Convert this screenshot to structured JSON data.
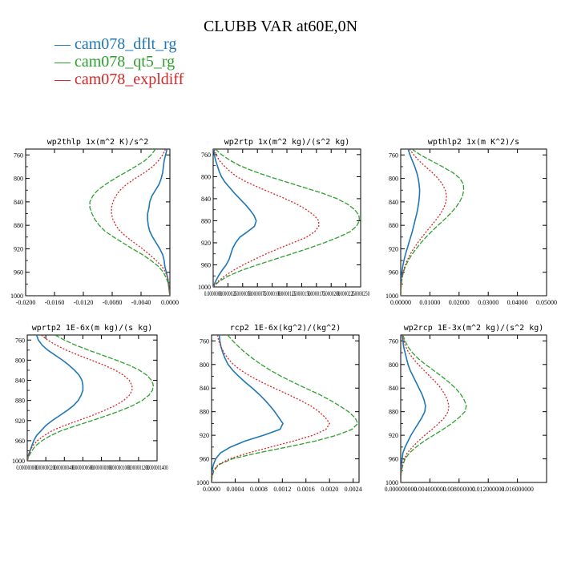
{
  "figure": {
    "title": "CLUBB VAR at60E,0N",
    "legend": [
      {
        "label": "cam078_dflt_rg",
        "color": "#1f77b4"
      },
      {
        "label": "cam078_qt5_rg",
        "color": "#2ca02c"
      },
      {
        "label": "cam078_expldiff",
        "color": "#d62728"
      }
    ]
  },
  "chart_data": [
    {
      "type": "line",
      "title": "wp2thlp  1x(m^2 K)/s^2",
      "xlim": [
        -0.02,
        0.0
      ],
      "ylim": [
        1000,
        750
      ],
      "xticks": [
        -0.02,
        -0.016,
        -0.012,
        -0.008,
        -0.004,
        0.0
      ],
      "xtick_labels": [
        "-0.0200",
        "-0.0160",
        "-0.0120",
        "-0.0080",
        "-0.0040",
        "0.0000"
      ],
      "yticks": [
        760,
        800,
        840,
        880,
        920,
        960,
        1000
      ],
      "y": [
        750,
        760,
        770,
        780,
        790,
        800,
        810,
        820,
        830,
        840,
        850,
        860,
        870,
        880,
        890,
        900,
        910,
        920,
        930,
        940,
        950,
        960,
        970,
        980,
        990,
        1000
      ],
      "series": [
        {
          "name": "cam078_dflt_rg",
          "values": [
            -0.0004,
            -0.0006,
            -0.0008,
            -0.0009,
            -0.001,
            -0.0012,
            -0.0015,
            -0.002,
            -0.0025,
            -0.0028,
            -0.0029,
            -0.0031,
            -0.0031,
            -0.003,
            -0.0028,
            -0.0024,
            -0.0019,
            -0.0014,
            -0.001,
            -0.0008,
            -0.0007,
            -0.0005,
            -0.0003,
            -0.0002,
            -0.0001,
            0.0
          ]
        },
        {
          "name": "cam078_qt5_rg",
          "values": [
            -0.002,
            -0.0026,
            -0.0035,
            -0.0048,
            -0.0062,
            -0.0076,
            -0.0089,
            -0.01,
            -0.0107,
            -0.0111,
            -0.0111,
            -0.0108,
            -0.0104,
            -0.0098,
            -0.009,
            -0.0078,
            -0.0065,
            -0.0052,
            -0.0038,
            -0.0026,
            -0.0016,
            -0.0009,
            -0.0005,
            -0.0002,
            -0.0001,
            0.0
          ]
        },
        {
          "name": "cam078_expldiff",
          "values": [
            -0.0006,
            -0.001,
            -0.0016,
            -0.0024,
            -0.0035,
            -0.0048,
            -0.006,
            -0.0069,
            -0.0075,
            -0.0079,
            -0.0081,
            -0.0081,
            -0.0079,
            -0.0075,
            -0.0069,
            -0.006,
            -0.0049,
            -0.0038,
            -0.0028,
            -0.0019,
            -0.0011,
            -0.0006,
            -0.0003,
            -0.0001,
            -5e-05,
            0.0
          ]
        }
      ]
    },
    {
      "type": "line",
      "title": "wp2rtp  1x(m^2 kg)/(s^2 kg)",
      "xlim": [
        0.0,
        2.5e-05
      ],
      "ylim": [
        1000,
        750
      ],
      "xticks": [
        0.0,
        2.5e-06,
        5e-06,
        7.5e-06,
        1e-05,
        1.25e-05,
        1.5e-05,
        1.75e-05,
        2e-05,
        2.25e-05,
        2.5e-05
      ],
      "xtick_labels": [
        "0.0000000",
        "0.0000025",
        "0.0000050",
        "0.0000075",
        "0.0000100",
        "0.0000125",
        "0.0000150",
        "0.0000175",
        "0.0000200",
        "0.0000225",
        "0.0000250"
      ],
      "yticks": [
        760,
        800,
        840,
        880,
        920,
        960,
        1000
      ],
      "y": [
        750,
        760,
        770,
        780,
        790,
        800,
        810,
        820,
        830,
        840,
        850,
        860,
        870,
        880,
        890,
        900,
        910,
        920,
        930,
        940,
        950,
        960,
        970,
        980,
        990,
        1000
      ],
      "series": [
        {
          "name": "cam078_dflt_rg",
          "values": [
            1e-07,
            2e-07,
            4e-07,
            7e-07,
            1e-06,
            1.4e-06,
            2e-06,
            2.8e-06,
            3.6e-06,
            4.5e-06,
            5.4e-06,
            6.2e-06,
            6.9e-06,
            7.3e-06,
            7e-06,
            5.8e-06,
            4.5e-06,
            3.8e-06,
            3.3e-06,
            3e-06,
            2.7e-06,
            2.2e-06,
            1.5e-06,
            9e-07,
            4e-07,
            0.0
          ]
        },
        {
          "name": "cam078_qt5_rg",
          "values": [
            4e-07,
            1.4e-06,
            2.8e-06,
            4.5e-06,
            6.8e-06,
            9.5e-06,
            1.25e-05,
            1.55e-05,
            1.85e-05,
            2.1e-05,
            2.28e-05,
            2.4e-05,
            2.47e-05,
            2.48e-05,
            2.43e-05,
            2.32e-05,
            2.12e-05,
            1.88e-05,
            1.62e-05,
            1.33e-05,
            1.04e-05,
            7.5e-06,
            4.8e-06,
            2.6e-06,
            1e-06,
            0.0
          ]
        },
        {
          "name": "cam078_expldiff",
          "values": [
            2e-07,
            5e-07,
            1e-06,
            1.8e-06,
            2.8e-06,
            4e-06,
            5.7e-06,
            7.8e-06,
            1e-05,
            1.22e-05,
            1.42e-05,
            1.58e-05,
            1.71e-05,
            1.79e-05,
            1.79e-05,
            1.72e-05,
            1.58e-05,
            1.35e-05,
            1.12e-05,
            9e-06,
            7e-06,
            5.1e-06,
            3.4e-06,
            2e-06,
            8e-07,
            0.0
          ]
        }
      ]
    },
    {
      "type": "line",
      "title": "wpthlp2  1x(m K^2)/s",
      "xlim": [
        0.0,
        0.05
      ],
      "ylim": [
        1000,
        750
      ],
      "xticks": [
        0.0,
        0.01,
        0.02,
        0.03,
        0.04,
        0.05
      ],
      "xtick_labels": [
        "0.00000",
        "0.01000",
        "0.02000",
        "0.03000",
        "0.04000",
        "0.05000"
      ],
      "yticks": [
        760,
        800,
        840,
        880,
        920,
        960,
        1000
      ],
      "y": [
        750,
        760,
        770,
        780,
        790,
        800,
        810,
        820,
        830,
        840,
        850,
        860,
        870,
        880,
        890,
        900,
        910,
        920,
        930,
        940,
        950,
        960,
        970,
        980,
        990,
        1000
      ],
      "series": [
        {
          "name": "cam078_dflt_rg",
          "values": [
            0.0025,
            0.0032,
            0.004,
            0.0048,
            0.0055,
            0.006,
            0.0063,
            0.0065,
            0.0064,
            0.0062,
            0.0059,
            0.0055,
            0.005,
            0.0045,
            0.004,
            0.0034,
            0.0028,
            0.0022,
            0.0016,
            0.0011,
            0.0007,
            0.0004,
            0.0002,
            0.0001,
            3e-05,
            0.0
          ]
        },
        {
          "name": "cam078_qt5_rg",
          "values": [
            0.0038,
            0.0068,
            0.0105,
            0.0143,
            0.0178,
            0.0203,
            0.0215,
            0.0216,
            0.0212,
            0.0202,
            0.0188,
            0.017,
            0.015,
            0.0128,
            0.0107,
            0.0087,
            0.0069,
            0.0053,
            0.0038,
            0.0026,
            0.0016,
            0.0009,
            0.0005,
            0.0002,
            0.0001,
            0.0
          ]
        },
        {
          "name": "cam078_expldiff",
          "values": [
            0.003,
            0.0045,
            0.0063,
            0.0085,
            0.0108,
            0.0128,
            0.0143,
            0.0153,
            0.0157,
            0.0155,
            0.0148,
            0.0137,
            0.0122,
            0.0106,
            0.0089,
            0.0073,
            0.0058,
            0.0044,
            0.0032,
            0.0022,
            0.0014,
            0.0008,
            0.0004,
            0.0002,
            5e-05,
            0.0
          ]
        }
      ]
    },
    {
      "type": "line",
      "title": "wprtp2  1E-6x(m kg)/(s kg)",
      "xlim": [
        0.0,
        1.4e-06
      ],
      "ylim": [
        1000,
        750
      ],
      "xticks": [
        0.0,
        2e-07,
        4e-07,
        6e-07,
        8e-07,
        1e-06,
        1.2e-06,
        1.4e-06
      ],
      "xtick_labels": [
        "0.000000000",
        "0.000000200",
        "0.000000400",
        "0.000000600",
        "0.000000800",
        "0.000001000",
        "0.000001200",
        "0.000001400"
      ],
      "yticks": [
        760,
        800,
        840,
        880,
        920,
        960,
        1000
      ],
      "y": [
        750,
        760,
        770,
        780,
        790,
        800,
        810,
        820,
        830,
        840,
        850,
        860,
        870,
        880,
        890,
        900,
        910,
        920,
        930,
        940,
        950,
        960,
        970,
        980,
        990,
        1000
      ],
      "series": [
        {
          "name": "cam078_dflt_rg",
          "values": [
            1e-07,
            1.2e-07,
            1.6e-07,
            2.2e-07,
            3e-07,
            3.8e-07,
            4.5e-07,
            5.1e-07,
            5.6e-07,
            5.9e-07,
            6e-07,
            6e-07,
            5.8e-07,
            5.5e-07,
            5e-07,
            4.3e-07,
            3.5e-07,
            2.7e-07,
            2e-07,
            1.5e-07,
            1e-07,
            7e-08,
            5e-08,
            3e-08,
            1e-08,
            0.0
          ]
        },
        {
          "name": "cam078_qt5_rg",
          "values": [
            3e-07,
            4e-07,
            5.2e-07,
            6.6e-07,
            8.1e-07,
            9.6e-07,
            1.1e-06,
            1.21e-06,
            1.29e-06,
            1.34e-06,
            1.36e-06,
            1.35e-06,
            1.31e-06,
            1.24e-06,
            1.14e-06,
            1.01e-06,
            8.6e-07,
            7e-07,
            5.3e-07,
            3.7e-07,
            2.5e-07,
            1.6e-07,
            9e-08,
            5e-08,
            2e-08,
            0.0
          ]
        },
        {
          "name": "cam078_expldiff",
          "values": [
            1.5e-07,
            2.2e-07,
            3.1e-07,
            4.2e-07,
            5.5e-07,
            6.9e-07,
            8.3e-07,
            9.5e-07,
            1.04e-06,
            1.1e-06,
            1.13e-06,
            1.13e-06,
            1.1e-06,
            1.04e-06,
            9.5e-07,
            8.3e-07,
            7e-07,
            5.5e-07,
            4e-07,
            2.7e-07,
            1.8e-07,
            1.1e-07,
            6e-08,
            3e-08,
            1e-08,
            0.0
          ]
        }
      ]
    },
    {
      "type": "line",
      "title": "rcp2  1E-6x(kg^2)/(kg^2)",
      "xlim": [
        0.0,
        0.0025
      ],
      "ylim": [
        1000,
        750
      ],
      "xticks": [
        0.0,
        0.0004,
        0.0008,
        0.0012,
        0.0016,
        0.002,
        0.0024
      ],
      "xtick_labels": [
        "0.0000",
        "0.0004",
        "0.0008",
        "0.0012",
        "0.0016",
        "0.0020",
        "0.0024"
      ],
      "yticks": [
        760,
        800,
        840,
        880,
        920,
        960,
        1000
      ],
      "y": [
        750,
        760,
        770,
        780,
        790,
        800,
        810,
        820,
        830,
        840,
        850,
        860,
        870,
        880,
        890,
        900,
        910,
        920,
        930,
        940,
        950,
        960,
        970,
        980,
        990,
        1000
      ],
      "series": [
        {
          "name": "cam078_dflt_rg",
          "values": [
            0.00013,
            0.00014,
            0.00016,
            0.00019,
            0.00023,
            0.00028,
            0.00036,
            0.00046,
            0.00057,
            0.00069,
            0.0008,
            0.0009,
            0.00099,
            0.00107,
            0.00114,
            0.00121,
            0.00116,
            0.00088,
            0.00056,
            0.00032,
            0.00015,
            7e-05,
            3e-05,
            1e-05,
            0.0,
            0.0
          ]
        },
        {
          "name": "cam078_qt5_rg",
          "values": [
            0.00027,
            0.00036,
            0.00046,
            0.00057,
            0.0007,
            0.00084,
            0.001,
            0.00118,
            0.00138,
            0.00159,
            0.00181,
            0.002,
            0.00217,
            0.00232,
            0.00243,
            0.00248,
            0.00238,
            0.00212,
            0.00175,
            0.00128,
            0.00078,
            0.00035,
            0.00012,
            4e-05,
            1e-05,
            0.0
          ]
        },
        {
          "name": "cam078_expldiff",
          "values": [
            0.0001,
            0.00012,
            0.00016,
            0.00021,
            0.00028,
            0.00037,
            0.0005,
            0.00066,
            0.00085,
            0.00106,
            0.00128,
            0.00149,
            0.00168,
            0.00182,
            0.00193,
            0.002,
            0.00194,
            0.00172,
            0.00138,
            0.001,
            0.00062,
            0.0003,
            0.00011,
            3e-05,
            1e-05,
            0.0
          ]
        }
      ]
    },
    {
      "type": "line",
      "title": "wp2rcp  1E-3x(m^2 kg)/(s^2 kg)",
      "xlim": [
        0.0,
        0.02
      ],
      "ylim": [
        1000,
        750
      ],
      "xticks": [
        0.0,
        0.004,
        0.008,
        0.012,
        0.016
      ],
      "xtick_labels": [
        "0.000000000",
        "0.004000000",
        "0.008000000",
        "0.012000000",
        "0.016000000"
      ],
      "yticks": [
        760,
        800,
        840,
        880,
        920,
        960,
        1000
      ],
      "y": [
        750,
        760,
        770,
        780,
        790,
        800,
        810,
        820,
        830,
        840,
        850,
        860,
        870,
        880,
        890,
        900,
        910,
        920,
        930,
        940,
        950,
        960,
        970,
        980,
        990,
        1000
      ],
      "series": [
        {
          "name": "cam078_dflt_rg",
          "values": [
            0.0002,
            0.0003,
            0.0004,
            0.0006,
            0.0008,
            0.001,
            0.0013,
            0.0017,
            0.0021,
            0.0025,
            0.0029,
            0.0032,
            0.0034,
            0.0033,
            0.0029,
            0.0024,
            0.0019,
            0.0014,
            0.001,
            0.0006,
            0.0003,
            0.0002,
            0.0001,
            5e-05,
            2e-05,
            0.0
          ]
        },
        {
          "name": "cam078_qt5_rg",
          "values": [
            0.0003,
            0.0006,
            0.001,
            0.0016,
            0.0024,
            0.0034,
            0.0045,
            0.0056,
            0.0066,
            0.0075,
            0.0082,
            0.0087,
            0.009,
            0.0088,
            0.008,
            0.007,
            0.0058,
            0.0045,
            0.0032,
            0.0021,
            0.0012,
            0.0006,
            0.0003,
            0.0001,
            3e-05,
            0.0
          ]
        },
        {
          "name": "cam078_expldiff",
          "values": [
            0.0002,
            0.0004,
            0.0007,
            0.0011,
            0.0017,
            0.0024,
            0.0032,
            0.004,
            0.0048,
            0.0055,
            0.006,
            0.0064,
            0.0066,
            0.0065,
            0.006,
            0.0052,
            0.0043,
            0.0033,
            0.0024,
            0.0016,
            0.0009,
            0.0005,
            0.0002,
            0.0001,
            2e-05,
            0.0
          ]
        }
      ]
    }
  ]
}
